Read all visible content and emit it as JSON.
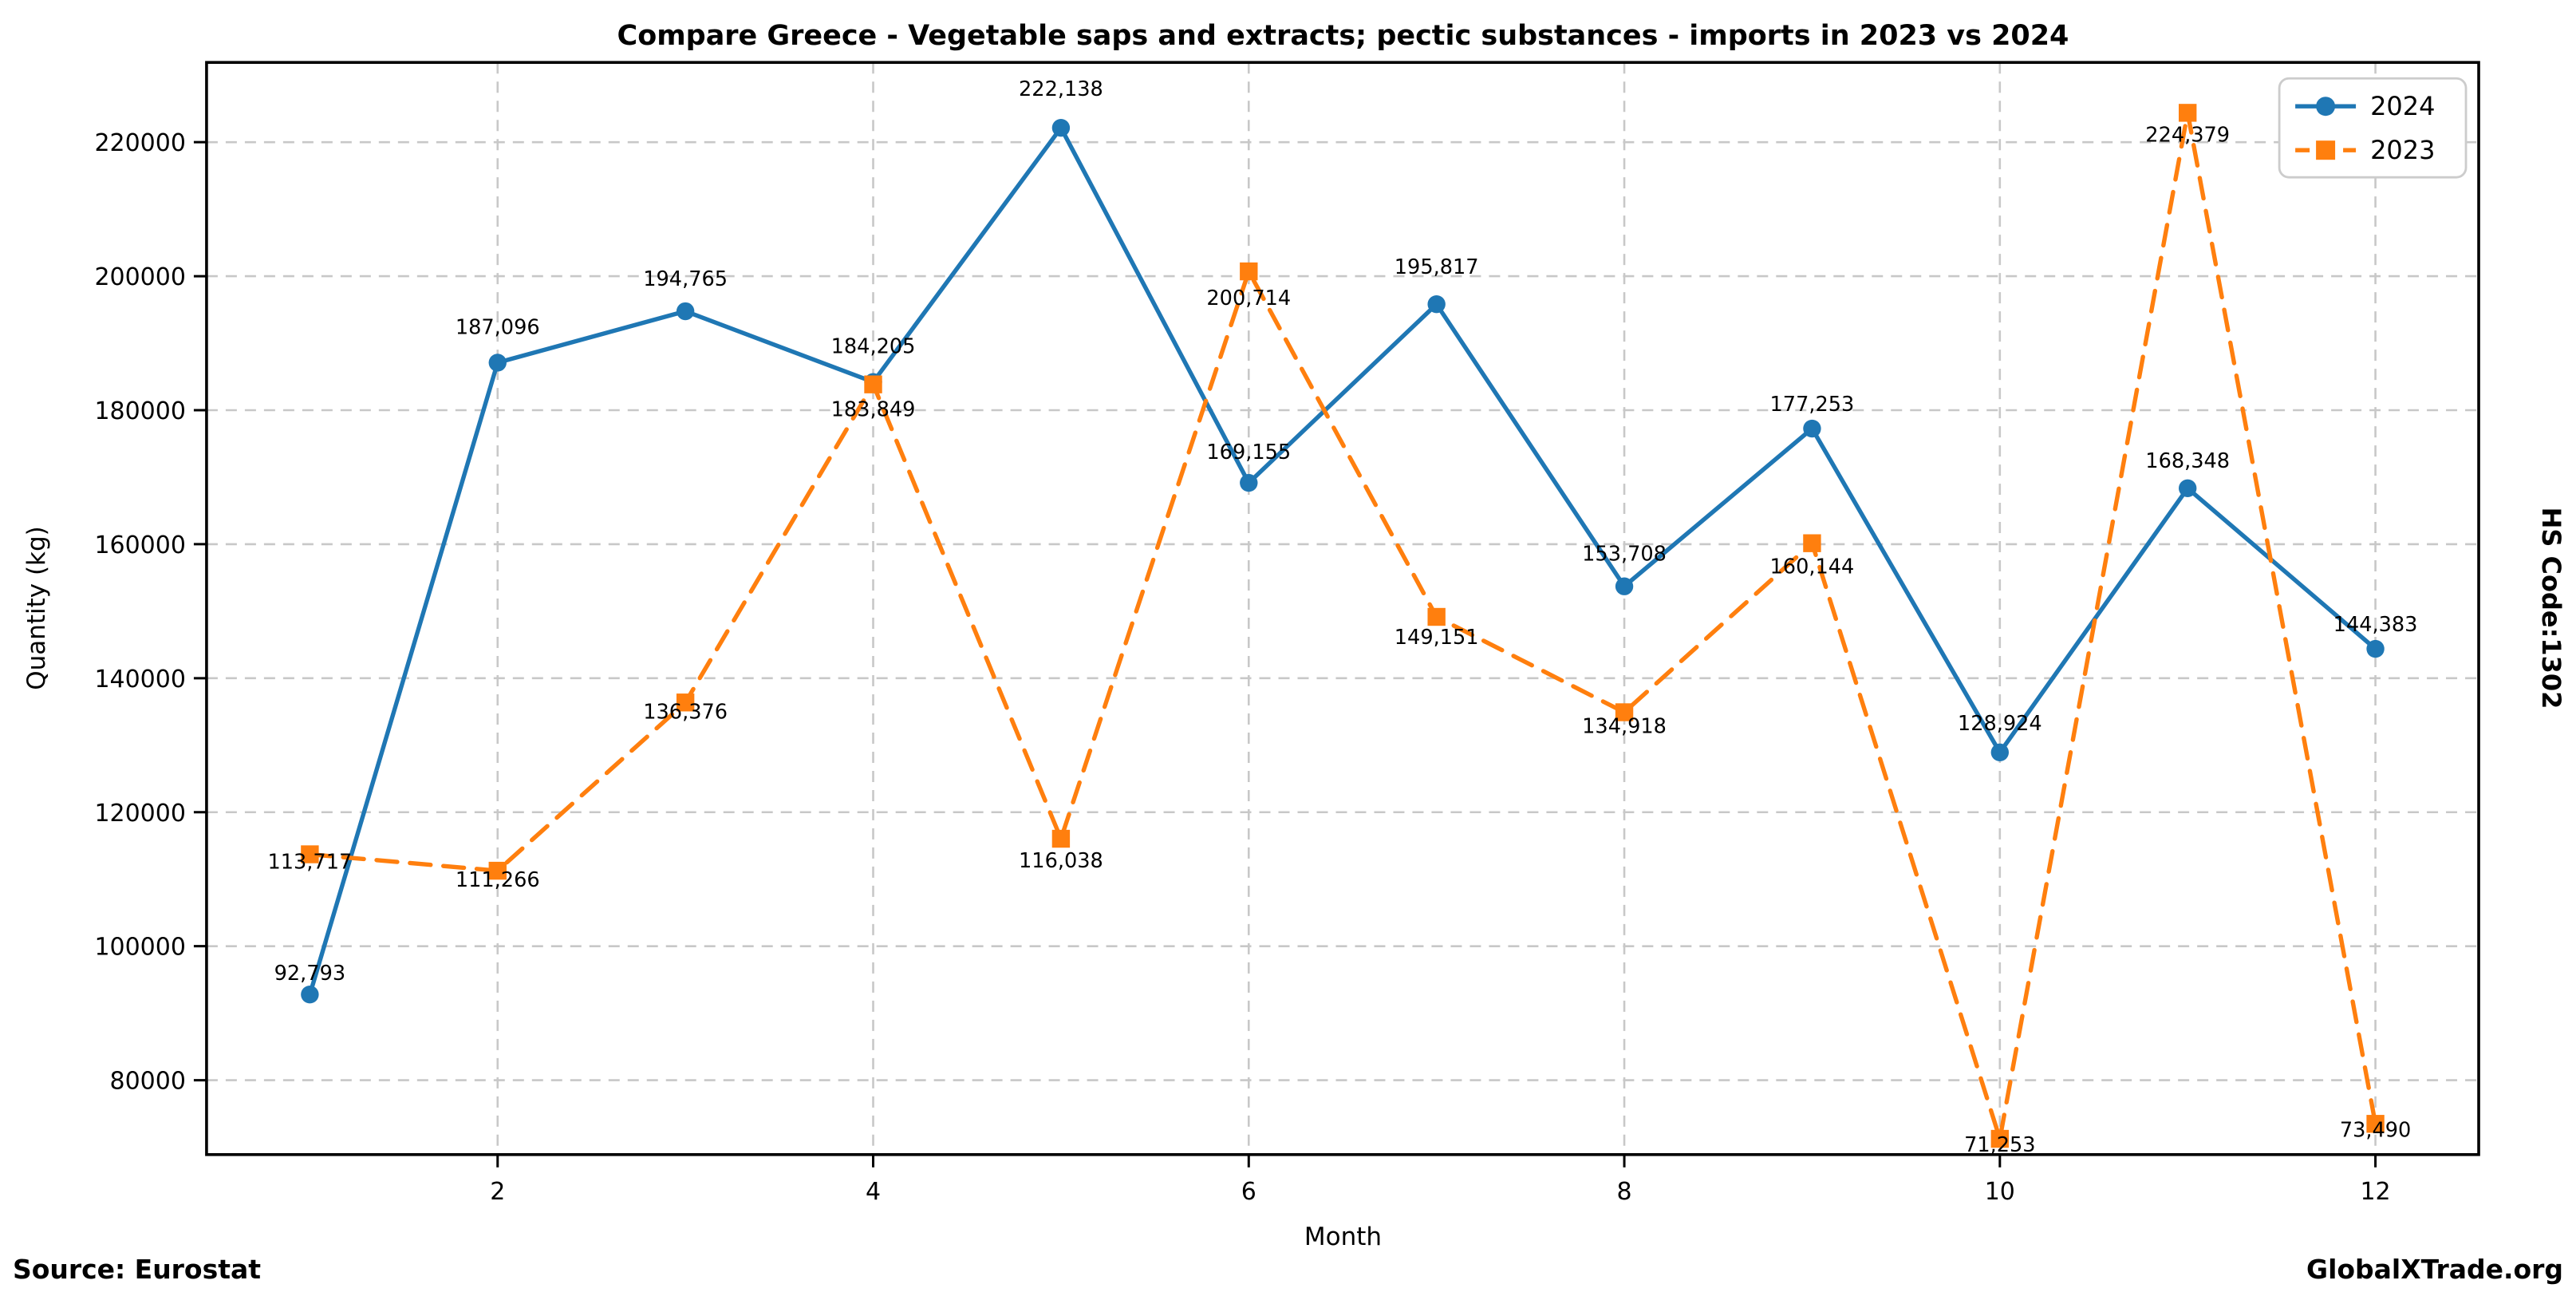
{
  "title": "Compare Greece - Vegetable saps and extracts; pectic substances - imports in 2023 vs 2024",
  "right_label": "HS Code:1302",
  "footer": {
    "source": "Source: Eurostat",
    "brand": "GlobalXTrade.org"
  },
  "chart_data": {
    "type": "line",
    "title": "Compare Greece - Vegetable saps and extracts; pectic substances - imports in 2023 vs 2024",
    "xlabel": "Month",
    "ylabel": "Quantity (kg)",
    "x": [
      1,
      2,
      3,
      4,
      5,
      6,
      7,
      8,
      9,
      10,
      11,
      12
    ],
    "xticks": [
      2,
      4,
      6,
      8,
      10,
      12
    ],
    "yticks": [
      80000,
      100000,
      120000,
      140000,
      160000,
      180000,
      200000,
      220000
    ],
    "xlim": [
      0.45,
      12.55
    ],
    "ylim": [
      68900,
      231900
    ],
    "grid": true,
    "legend_position": "upper right",
    "series": [
      {
        "name": "2024",
        "color": "#1f77b4",
        "line": "solid",
        "marker": "circle",
        "values": [
          92793,
          187096,
          194765,
          184205,
          222138,
          169155,
          195817,
          153708,
          177253,
          128924,
          168348,
          144383
        ]
      },
      {
        "name": "2023",
        "color": "#ff7f0e",
        "line": "dashed",
        "marker": "square",
        "values": [
          113717,
          111266,
          136376,
          183849,
          116038,
          200714,
          149151,
          134918,
          160144,
          71253,
          224379,
          73490
        ]
      }
    ]
  }
}
